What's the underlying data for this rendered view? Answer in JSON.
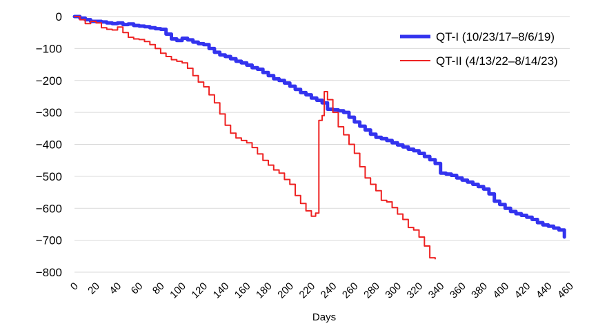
{
  "chart_data": {
    "type": "line",
    "title": "",
    "xlabel": "Days",
    "ylabel": "",
    "xlim": [
      0,
      460
    ],
    "ylim": [
      -800,
      0
    ],
    "x_ticks": [
      0,
      20,
      40,
      60,
      80,
      100,
      120,
      140,
      160,
      180,
      200,
      220,
      240,
      260,
      280,
      300,
      320,
      340,
      360,
      380,
      400,
      420,
      440,
      460
    ],
    "y_ticks": [
      0,
      -100,
      -200,
      -300,
      -400,
      -500,
      -600,
      -700,
      -800
    ],
    "grid": true,
    "legend_position": "top-right",
    "series": [
      {
        "name": "QT-I (10/23/17–8/6/19)",
        "color": "#3333ee",
        "points": [
          [
            0,
            0
          ],
          [
            5,
            -5
          ],
          [
            10,
            -10
          ],
          [
            15,
            -15
          ],
          [
            25,
            -17
          ],
          [
            30,
            -20
          ],
          [
            35,
            -22
          ],
          [
            40,
            -20
          ],
          [
            45,
            -25
          ],
          [
            50,
            -23
          ],
          [
            55,
            -28
          ],
          [
            60,
            -30
          ],
          [
            65,
            -32
          ],
          [
            70,
            -35
          ],
          [
            75,
            -38
          ],
          [
            80,
            -40
          ],
          [
            85,
            -55
          ],
          [
            90,
            -70
          ],
          [
            95,
            -75
          ],
          [
            100,
            -68
          ],
          [
            105,
            -73
          ],
          [
            110,
            -80
          ],
          [
            115,
            -85
          ],
          [
            120,
            -88
          ],
          [
            125,
            -100
          ],
          [
            130,
            -112
          ],
          [
            135,
            -120
          ],
          [
            140,
            -125
          ],
          [
            145,
            -132
          ],
          [
            150,
            -140
          ],
          [
            155,
            -145
          ],
          [
            160,
            -152
          ],
          [
            165,
            -160
          ],
          [
            170,
            -165
          ],
          [
            175,
            -175
          ],
          [
            180,
            -185
          ],
          [
            185,
            -195
          ],
          [
            190,
            -200
          ],
          [
            195,
            -208
          ],
          [
            200,
            -218
          ],
          [
            205,
            -228
          ],
          [
            210,
            -238
          ],
          [
            215,
            -245
          ],
          [
            220,
            -255
          ],
          [
            225,
            -262
          ],
          [
            230,
            -270
          ],
          [
            235,
            -290
          ],
          [
            240,
            -292
          ],
          [
            245,
            -295
          ],
          [
            250,
            -300
          ],
          [
            255,
            -315
          ],
          [
            260,
            -330
          ],
          [
            265,
            -343
          ],
          [
            270,
            -355
          ],
          [
            275,
            -368
          ],
          [
            280,
            -378
          ],
          [
            285,
            -382
          ],
          [
            290,
            -388
          ],
          [
            295,
            -395
          ],
          [
            300,
            -402
          ],
          [
            305,
            -408
          ],
          [
            310,
            -415
          ],
          [
            315,
            -420
          ],
          [
            320,
            -428
          ],
          [
            325,
            -438
          ],
          [
            330,
            -448
          ],
          [
            335,
            -460
          ],
          [
            340,
            -490
          ],
          [
            345,
            -493
          ],
          [
            350,
            -497
          ],
          [
            355,
            -505
          ],
          [
            360,
            -512
          ],
          [
            365,
            -518
          ],
          [
            370,
            -525
          ],
          [
            375,
            -532
          ],
          [
            380,
            -540
          ],
          [
            385,
            -555
          ],
          [
            390,
            -578
          ],
          [
            395,
            -588
          ],
          [
            400,
            -600
          ],
          [
            405,
            -610
          ],
          [
            410,
            -617
          ],
          [
            415,
            -622
          ],
          [
            420,
            -628
          ],
          [
            425,
            -635
          ],
          [
            430,
            -645
          ],
          [
            435,
            -652
          ],
          [
            440,
            -656
          ],
          [
            445,
            -662
          ],
          [
            450,
            -668
          ],
          [
            455,
            -690
          ]
        ]
      },
      {
        "name": "QT-II (4/13/22–8/14/23)",
        "color": "#ee2222",
        "points": [
          [
            0,
            0
          ],
          [
            5,
            -10
          ],
          [
            10,
            -22
          ],
          [
            15,
            -15
          ],
          [
            20,
            -20
          ],
          [
            25,
            -35
          ],
          [
            30,
            -40
          ],
          [
            35,
            -42
          ],
          [
            40,
            -33
          ],
          [
            45,
            -50
          ],
          [
            50,
            -65
          ],
          [
            55,
            -70
          ],
          [
            60,
            -72
          ],
          [
            65,
            -78
          ],
          [
            70,
            -88
          ],
          [
            75,
            -100
          ],
          [
            80,
            -115
          ],
          [
            85,
            -125
          ],
          [
            90,
            -135
          ],
          [
            95,
            -140
          ],
          [
            100,
            -145
          ],
          [
            105,
            -162
          ],
          [
            110,
            -185
          ],
          [
            115,
            -205
          ],
          [
            120,
            -220
          ],
          [
            125,
            -245
          ],
          [
            130,
            -270
          ],
          [
            135,
            -305
          ],
          [
            140,
            -340
          ],
          [
            145,
            -365
          ],
          [
            150,
            -380
          ],
          [
            155,
            -388
          ],
          [
            160,
            -395
          ],
          [
            165,
            -410
          ],
          [
            170,
            -430
          ],
          [
            175,
            -450
          ],
          [
            180,
            -465
          ],
          [
            185,
            -480
          ],
          [
            190,
            -490
          ],
          [
            195,
            -510
          ],
          [
            200,
            -525
          ],
          [
            205,
            -560
          ],
          [
            210,
            -585
          ],
          [
            215,
            -608
          ],
          [
            220,
            -625
          ],
          [
            224,
            -615
          ],
          [
            227,
            -325
          ],
          [
            230,
            -310
          ],
          [
            232,
            -235
          ],
          [
            235,
            -260
          ],
          [
            240,
            -300
          ],
          [
            245,
            -345
          ],
          [
            250,
            -370
          ],
          [
            255,
            -400
          ],
          [
            260,
            -428
          ],
          [
            265,
            -470
          ],
          [
            270,
            -505
          ],
          [
            275,
            -525
          ],
          [
            280,
            -545
          ],
          [
            285,
            -575
          ],
          [
            290,
            -580
          ],
          [
            295,
            -598
          ],
          [
            300,
            -618
          ],
          [
            305,
            -635
          ],
          [
            310,
            -660
          ],
          [
            315,
            -668
          ],
          [
            320,
            -690
          ],
          [
            325,
            -718
          ],
          [
            330,
            -755
          ],
          [
            335,
            -758
          ]
        ]
      }
    ]
  }
}
